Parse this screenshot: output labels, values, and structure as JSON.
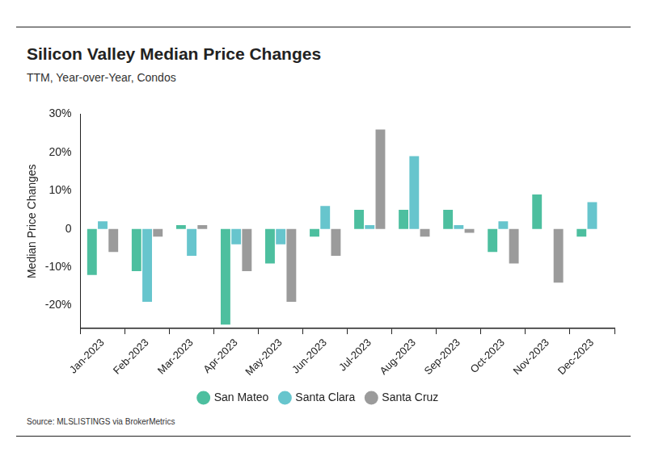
{
  "chart_data": {
    "type": "bar",
    "title": "Silicon Valley Median Price Changes",
    "subtitle": "TTM, Year-over-Year, Condos",
    "y_label": "Median Price Changes",
    "source": "Source:  MLSLISTINGS via BrokerMetrics",
    "categories": [
      "Jan-2023",
      "Feb-2023",
      "Mar-2023",
      "Apr-2023",
      "May-2023",
      "Jun-2023",
      "Jul-2023",
      "Aug-2023",
      "Sep-2023",
      "Oct-2023",
      "Nov-2023",
      "Dec-2023"
    ],
    "series": [
      {
        "name": "San Mateo",
        "color": "#4dbf9f",
        "values": [
          -12,
          -11,
          1,
          -25,
          -9,
          -2,
          5,
          5,
          5,
          -6,
          9,
          -2
        ]
      },
      {
        "name": "Santa Clara",
        "color": "#67c5cd",
        "values": [
          2,
          -19,
          -7,
          -4,
          -4,
          6,
          1,
          19,
          1,
          2,
          0,
          7
        ]
      },
      {
        "name": "Santa Cruz",
        "color": "#9b9b9b",
        "values": [
          -6,
          -2,
          1,
          -11,
          -19,
          -7,
          26,
          -2,
          -1,
          -9,
          -14,
          0
        ]
      }
    ],
    "ylim": [
      -26,
      30
    ],
    "yticks": [
      {
        "value": -20,
        "label": "-20%"
      },
      {
        "value": -10,
        "label": "-10%"
      },
      0,
      {
        "value": 10,
        "label": "10%"
      },
      {
        "value": 20,
        "label": "20%"
      },
      {
        "value": 30,
        "label": "30%"
      }
    ],
    "grid": false,
    "legend": "bottom"
  }
}
